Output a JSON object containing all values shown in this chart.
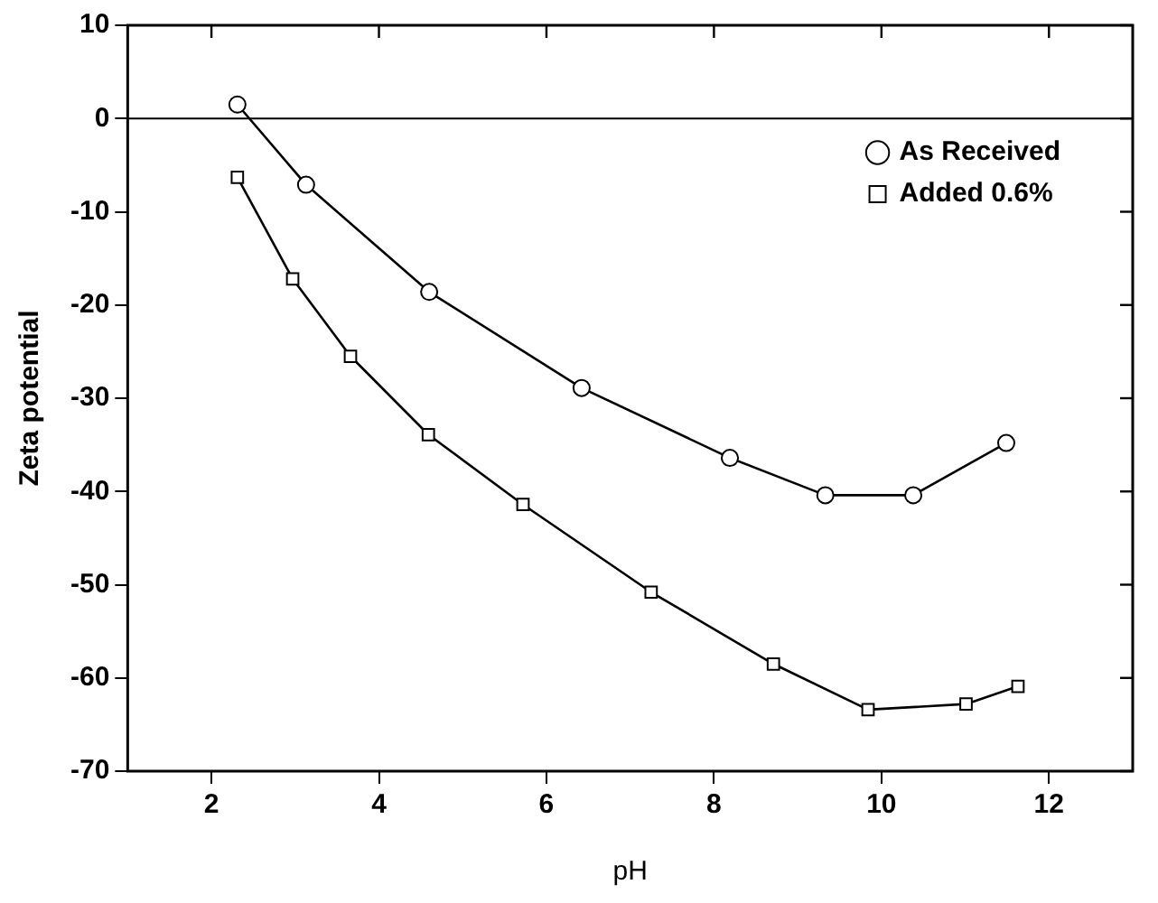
{
  "chart_data": {
    "type": "line",
    "xlabel": "pH",
    "ylabel": "Zeta potential",
    "xlim": [
      1,
      13
    ],
    "xticks": [
      2,
      4,
      6,
      8,
      10,
      12
    ],
    "ylim": [
      -70,
      10
    ],
    "yticks": [
      -70,
      -60,
      -50,
      -40,
      -30,
      -20,
      -10,
      0,
      10
    ],
    "grid": false,
    "legend": "top right",
    "line_style": "solid",
    "ref_lines": [
      {
        "axis": "y",
        "value": 0,
        "color": "#000000"
      }
    ],
    "series": [
      {
        "name": "As Received",
        "color": "#000000",
        "marker": "circle",
        "x": [
          2.31,
          3.13,
          4.6,
          6.42,
          8.19,
          9.33,
          10.38,
          11.49
        ],
        "values": [
          1.5,
          -7.1,
          -18.6,
          -28.9,
          -36.4,
          -40.4,
          -40.4,
          -34.8
        ]
      },
      {
        "name": "Added 0.6%",
        "color": "#000000",
        "marker": "square",
        "x": [
          2.31,
          2.97,
          3.66,
          4.59,
          5.72,
          7.25,
          8.71,
          9.84,
          11.01,
          11.63
        ],
        "values": [
          -6.3,
          -17.2,
          -25.5,
          -33.9,
          -41.4,
          -50.8,
          -58.5,
          -63.4,
          -62.8,
          -60.9
        ]
      }
    ]
  }
}
